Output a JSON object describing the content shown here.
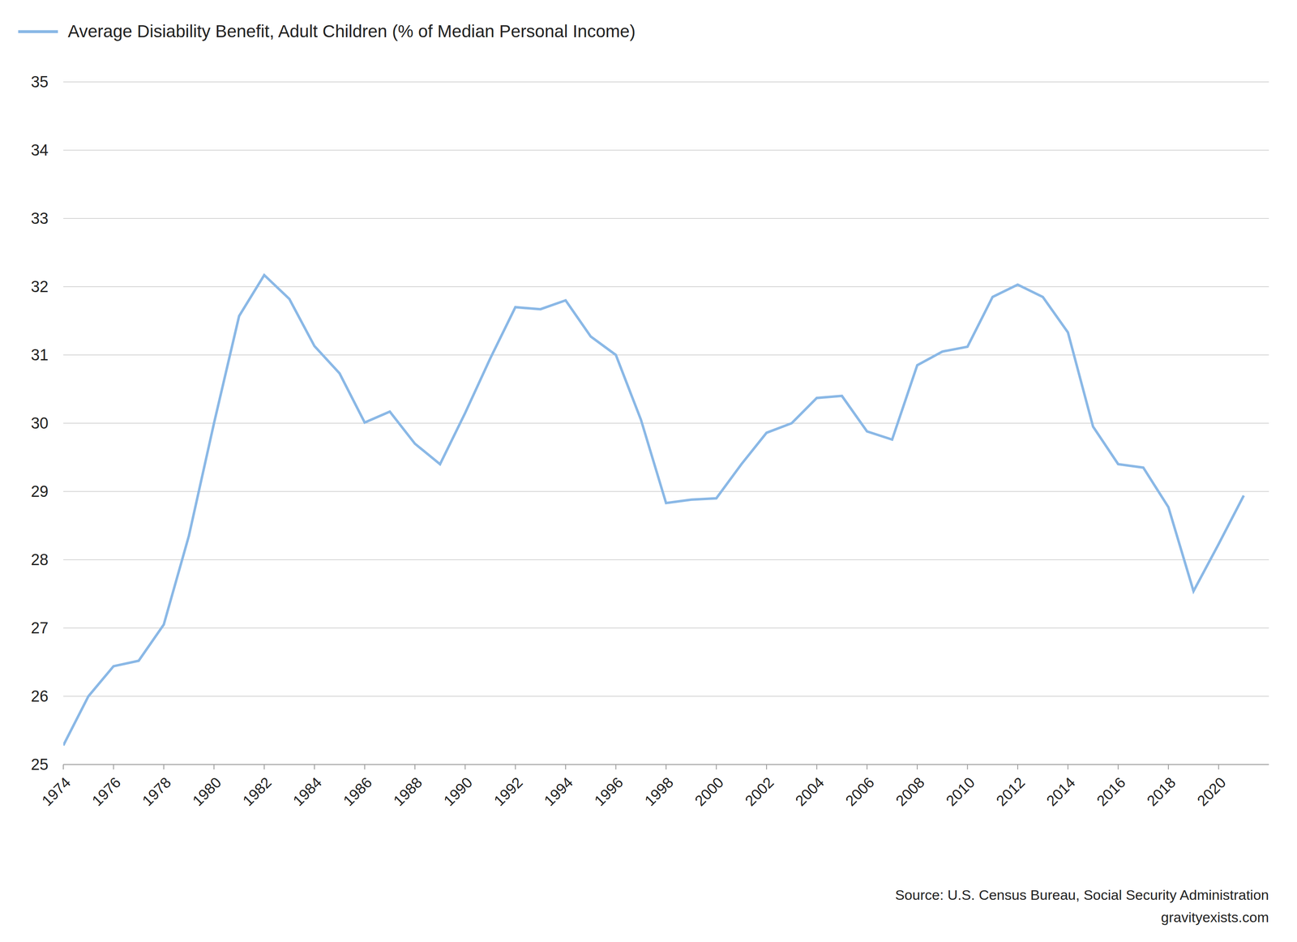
{
  "chart_data": {
    "type": "line",
    "x": [
      1974,
      1975,
      1976,
      1977,
      1978,
      1979,
      1980,
      1981,
      1982,
      1983,
      1984,
      1985,
      1986,
      1987,
      1988,
      1989,
      1990,
      1991,
      1992,
      1993,
      1994,
      1995,
      1996,
      1997,
      1998,
      1999,
      2000,
      2001,
      2002,
      2003,
      2004,
      2005,
      2006,
      2007,
      2008,
      2009,
      2010,
      2011,
      2012,
      2013,
      2014,
      2015,
      2016,
      2017,
      2018,
      2019,
      2020,
      2021
    ],
    "series": [
      {
        "name": "Average Disiability Benefit, Adult Children (% of Median Personal Income)",
        "color": "#8ab8e6",
        "values": [
          25.28,
          26.0,
          26.44,
          26.52,
          27.05,
          28.35,
          30.0,
          31.57,
          32.17,
          31.82,
          31.13,
          30.73,
          30.01,
          30.17,
          29.7,
          29.4,
          30.15,
          30.95,
          31.7,
          31.67,
          31.8,
          31.27,
          31.0,
          30.05,
          28.83,
          28.88,
          28.9,
          29.4,
          29.86,
          30.0,
          30.37,
          30.4,
          29.88,
          29.76,
          30.85,
          31.05,
          31.12,
          31.85,
          32.03,
          31.85,
          31.33,
          29.95,
          29.4,
          29.35,
          28.77,
          27.54,
          28.23,
          28.94
        ]
      }
    ],
    "xlim": [
      1974,
      2022
    ],
    "xticks": [
      1974,
      1976,
      1978,
      1980,
      1982,
      1984,
      1986,
      1988,
      1990,
      1992,
      1994,
      1996,
      1998,
      2000,
      2002,
      2004,
      2006,
      2008,
      2010,
      2012,
      2014,
      2016,
      2018,
      2020
    ],
    "ylim": [
      25,
      35
    ],
    "yticks": [
      25,
      26,
      27,
      28,
      29,
      30,
      31,
      32,
      33,
      34,
      35
    ],
    "grid": true,
    "legend": "top-left",
    "annotations": [
      "Source: U.S. Census Bureau, Social Security Administration",
      "gravityexists.com"
    ]
  }
}
